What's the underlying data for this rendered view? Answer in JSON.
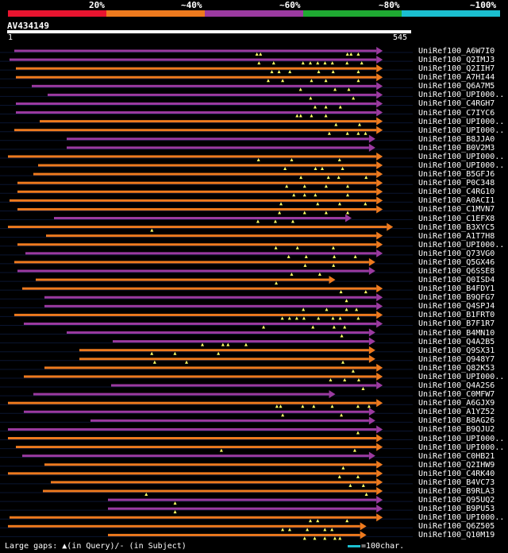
{
  "query": {
    "id": "AV434149",
    "start": "1",
    "end": "545",
    "length": 545
  },
  "scale": {
    "labels": [
      "20%",
      "~40%",
      "~60%",
      "~80%",
      "~100%"
    ],
    "colors": [
      "#e8142f",
      "#ee7a1e",
      "#9b3aa0",
      "#1faa32",
      "#1bbfd0"
    ]
  },
  "hits": [
    {
      "name": "UniRef100_A6W7I0",
      "bin": 2,
      "end": 498,
      "tri": [
        0.67,
        0.68,
        0.92,
        0.93,
        0.95
      ]
    },
    {
      "name": "UniRef100_Q2IMJ3",
      "bin": 2,
      "end": 498,
      "tri": [
        0.68,
        0.72,
        0.8,
        0.82,
        0.84,
        0.86,
        0.88,
        0.92,
        0.96
      ]
    },
    {
      "name": "UniRef100_Q2IIH7",
      "bin": 1,
      "end": 498,
      "tri": [
        0.71,
        0.73,
        0.76,
        0.84,
        0.88,
        0.95
      ]
    },
    {
      "name": "UniRef100_A7HI44",
      "bin": 1,
      "end": 498,
      "tri": [
        0.7,
        0.74,
        0.82,
        0.86,
        0.95
      ]
    },
    {
      "name": "UniRef100_Q6A7M5",
      "bin": 2,
      "end": 498,
      "tri": [
        0.78,
        0.88,
        0.92
      ]
    },
    {
      "name": "UniRef100_UPI000..",
      "bin": 2,
      "end": 498,
      "tri": [
        0.8,
        0.93
      ]
    },
    {
      "name": "UniRef100_C4RGH7",
      "bin": 2,
      "end": 498,
      "tri": [
        0.83,
        0.86,
        0.9
      ]
    },
    {
      "name": "UniRef100_C7IYC6",
      "bin": 2,
      "end": 498,
      "tri": [
        0.78,
        0.79,
        0.82,
        0.86
      ]
    },
    {
      "name": "UniRef100_UPI000..",
      "bin": 1,
      "end": 498,
      "tri": [
        0.88,
        0.95
      ]
    },
    {
      "name": "UniRef100_UPI000..",
      "bin": 1,
      "end": 498,
      "tri": [
        0.87,
        0.92,
        0.95,
        0.97
      ]
    },
    {
      "name": "UniRef100_B8JJA0",
      "bin": 2,
      "end": 488,
      "tri": []
    },
    {
      "name": "UniRef100_B0V2M3",
      "bin": 2,
      "end": 488,
      "tri": []
    },
    {
      "name": "UniRef100_UPI000..",
      "bin": 1,
      "end": 498,
      "tri": [
        0.68,
        0.77,
        0.9
      ]
    },
    {
      "name": "UniRef100_UPI000..",
      "bin": 1,
      "end": 498,
      "tri": [
        0.73,
        0.82,
        0.84,
        0.9
      ]
    },
    {
      "name": "UniRef100_B5GFJ6",
      "bin": 1,
      "end": 498,
      "tri": [
        0.78,
        0.86,
        0.89,
        0.97
      ]
    },
    {
      "name": "UniRef100_P0C348",
      "bin": 1,
      "end": 498,
      "tri": [
        0.75,
        0.8,
        0.86,
        0.92
      ]
    },
    {
      "name": "UniRef100_C4RG10",
      "bin": 1,
      "end": 498,
      "tri": [
        0.77,
        0.8,
        0.83,
        0.92
      ]
    },
    {
      "name": "UniRef100_A0ACI1",
      "bin": 1,
      "end": 498,
      "tri": [
        0.74,
        0.84,
        0.9,
        0.97
      ]
    },
    {
      "name": "UniRef100_C1MVN7",
      "bin": 1,
      "end": 498,
      "tri": [
        0.73,
        0.8,
        0.86,
        0.92
      ]
    },
    {
      "name": "UniRef100_C1EFX8",
      "bin": 2,
      "end": 456,
      "tri": [
        0.7,
        0.76,
        0.82
      ]
    },
    {
      "name": "UniRef100_B3XYC5",
      "bin": 1,
      "end": 512,
      "tri": [
        0.38
      ]
    },
    {
      "name": "UniRef100_A1T7H8",
      "bin": 1,
      "end": 498,
      "tri": []
    },
    {
      "name": "UniRef100_UPI000..",
      "bin": 1,
      "end": 498,
      "tri": [
        0.72,
        0.78,
        0.88
      ]
    },
    {
      "name": "UniRef100_Q73VG0",
      "bin": 2,
      "end": 498,
      "tri": [
        0.75,
        0.8,
        0.88,
        0.94
      ]
    },
    {
      "name": "UniRef100_Q5GX46",
      "bin": 1,
      "end": 488,
      "tri": [
        0.82,
        0.9
      ]
    },
    {
      "name": "UniRef100_Q6SSE8",
      "bin": 2,
      "end": 488,
      "tri": [
        0.78,
        0.86
      ]
    },
    {
      "name": "UniRef100_Q0ISD4",
      "bin": 1,
      "end": 434,
      "tri": [
        0.82
      ]
    },
    {
      "name": "UniRef100_B4FDY1",
      "bin": 1,
      "end": 498,
      "tri": [
        0.9,
        0.97
      ]
    },
    {
      "name": "UniRef100_B9QFG7",
      "bin": 2,
      "end": 498,
      "tri": [
        0.91
      ]
    },
    {
      "name": "UniRef100_Q4SPJ4",
      "bin": 2,
      "end": 498,
      "tri": [
        0.78,
        0.85,
        0.91,
        0.94
      ]
    },
    {
      "name": "UniRef100_B1FRT0",
      "bin": 1,
      "end": 498,
      "tri": [
        0.74,
        0.76,
        0.78,
        0.8,
        0.84,
        0.88,
        0.9,
        0.95
      ]
    },
    {
      "name": "UniRef100_B7F1R7",
      "bin": 2,
      "end": 498,
      "tri": [
        0.68,
        0.82,
        0.88,
        0.91
      ]
    },
    {
      "name": "UniRef100_B4MN10",
      "bin": 2,
      "end": 488,
      "tri": [
        0.91
      ]
    },
    {
      "name": "UniRef100_Q4A2B5",
      "bin": 2,
      "end": 488,
      "tri": [
        0.35,
        0.43,
        0.45,
        0.52
      ]
    },
    {
      "name": "UniRef100_Q9SX31",
      "bin": 1,
      "end": 488,
      "tri": [
        0.25,
        0.33,
        0.48
      ]
    },
    {
      "name": "UniRef100_Q948Y7",
      "bin": 1,
      "end": 488,
      "tri": [
        0.26,
        0.37,
        0.91
      ]
    },
    {
      "name": "UniRef100_Q82K53",
      "bin": 1,
      "end": 498,
      "tri": [
        0.93
      ]
    },
    {
      "name": "UniRef100_UPI000..",
      "bin": 1,
      "end": 498,
      "tri": [
        0.87,
        0.91,
        0.95
      ]
    },
    {
      "name": "UniRef100_Q4A2S6",
      "bin": 2,
      "end": 498,
      "tri": [
        0.95
      ]
    },
    {
      "name": "UniRef100_C0MFW7",
      "bin": 2,
      "end": 434,
      "tri": []
    },
    {
      "name": "UniRef100_A6GJX9",
      "bin": 1,
      "end": 498,
      "tri": [
        0.73,
        0.74,
        0.8,
        0.83,
        0.88,
        0.95,
        0.98
      ]
    },
    {
      "name": "UniRef100_A1YZ52",
      "bin": 2,
      "end": 488,
      "tri": [
        0.75,
        0.92
      ]
    },
    {
      "name": "UniRef100_B8AG26",
      "bin": 2,
      "end": 488,
      "tri": []
    },
    {
      "name": "UniRef100_B9QJU2",
      "bin": 2,
      "end": 498,
      "tri": [
        0.95
      ]
    },
    {
      "name": "UniRef100_UPI000..",
      "bin": 1,
      "end": 498,
      "tri": []
    },
    {
      "name": "UniRef100_UPI000..",
      "bin": 1,
      "end": 498,
      "tri": [
        0.57,
        0.94
      ]
    },
    {
      "name": "UniRef100_C0HB21",
      "bin": 2,
      "end": 488,
      "tri": []
    },
    {
      "name": "UniRef100_Q2IHW9",
      "bin": 1,
      "end": 498,
      "tri": [
        0.9
      ]
    },
    {
      "name": "UniRef100_C4RK40",
      "bin": 1,
      "end": 498,
      "tri": [
        0.9,
        0.95
      ]
    },
    {
      "name": "UniRef100_B4VC73",
      "bin": 1,
      "end": 498,
      "tri": [
        0.92,
        0.96
      ]
    },
    {
      "name": "UniRef100_B9RLA3",
      "bin": 1,
      "end": 498,
      "tri": [
        0.31,
        0.97
      ]
    },
    {
      "name": "UniRef100_Q95UQ2",
      "bin": 2,
      "end": 498,
      "tri": [
        0.25
      ]
    },
    {
      "name": "UniRef100_B9PU53",
      "bin": 2,
      "end": 498,
      "tri": [
        0.25
      ]
    },
    {
      "name": "UniRef100_UPI000..",
      "bin": 1,
      "end": 498,
      "tri": [
        0.82,
        0.84,
        0.92
      ]
    },
    {
      "name": "UniRef100_Q6Z505",
      "bin": 1,
      "end": 476,
      "tri": [
        0.78,
        0.8,
        0.85,
        0.9,
        0.92
      ]
    },
    {
      "name": "UniRef100_Q10M19",
      "bin": 1,
      "end": 476,
      "tri": [
        0.78,
        0.82,
        0.86,
        0.9,
        0.92
      ]
    }
  ],
  "footer": {
    "prefix": "Large gaps: ",
    "query_note": "(in Query)/",
    "subject_note": "- (in Subject)",
    "legend": "=100char."
  }
}
